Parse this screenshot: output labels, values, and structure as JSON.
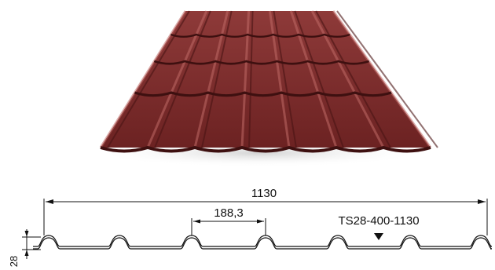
{
  "product_illustration": {
    "name": "metal-roof-tile-sheet",
    "colors": {
      "sheet": "#7a2a2a",
      "sheet_dark": "#4f1616",
      "sheet_light": "#a44a48",
      "shadow": "#dcdcdc"
    }
  },
  "profile_drawing": {
    "overall_width_label": "1130",
    "wave_pitch_label": "188,3",
    "model_label": "TS28-400-1130",
    "height_label": "28",
    "colors": {
      "line": "#111111"
    }
  }
}
